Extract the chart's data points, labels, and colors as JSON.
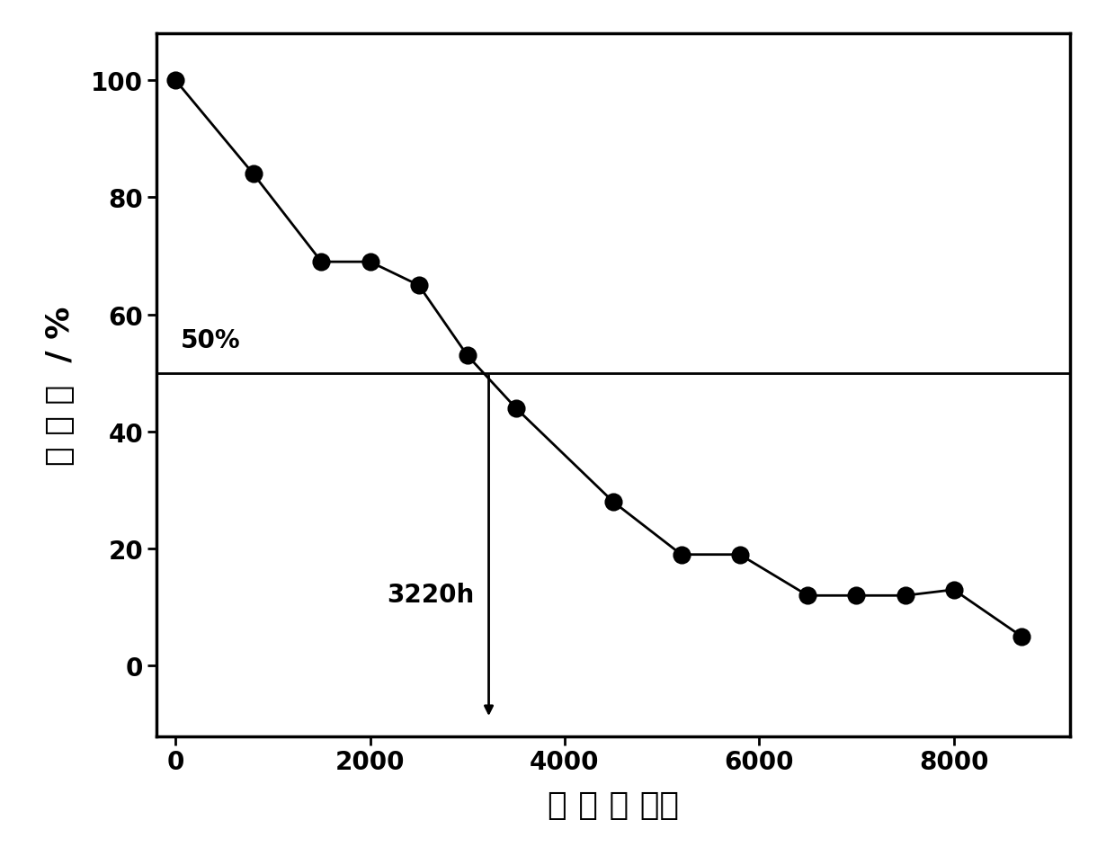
{
  "x": [
    0,
    800,
    1500,
    2000,
    2500,
    3000,
    3500,
    4500,
    5200,
    5800,
    6500,
    7000,
    7500,
    8000,
    8700
  ],
  "y": [
    100,
    84,
    69,
    69,
    65,
    53,
    44,
    28,
    19,
    19,
    12,
    12,
    12,
    13,
    5
  ],
  "xlim": [
    -200,
    9200
  ],
  "ylim": [
    -12,
    108
  ],
  "xticks": [
    0,
    2000,
    4000,
    6000,
    8000
  ],
  "yticks": [
    0,
    20,
    40,
    60,
    80,
    100
  ],
  "xlabel": "时 间 ／ 小时",
  "ylabel": "保 光 率  / %",
  "hline_y": 50,
  "vline_x": 3220,
  "annotation_50": "50%",
  "annotation_3220": "3220h",
  "line_color": "#000000",
  "marker_color": "#000000",
  "background_color": "#ffffff",
  "marker_size": 13,
  "line_width": 2.0,
  "annotation_fontsize": 20,
  "axis_label_fontsize": 26,
  "tick_fontsize": 20,
  "spine_linewidth": 2.5
}
